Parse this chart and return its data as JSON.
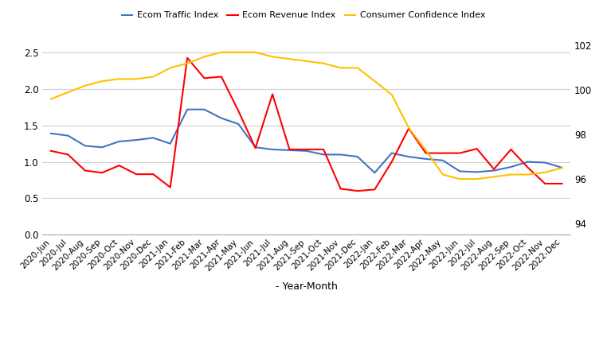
{
  "labels": [
    "2020-Jun",
    "2020-Jul",
    "2020-Aug",
    "2020-Sep",
    "2020-Oct",
    "2020-Nov",
    "2020-Dec",
    "2021-Jan",
    "2021-Feb",
    "2021-Mar",
    "2021-Apr",
    "2021-May",
    "2021-Jun",
    "2021-Jul",
    "2021-Aug",
    "2021-Sep",
    "2021-Oct",
    "2021-Nov",
    "2021-Dec",
    "2022-Jan",
    "2022-Feb",
    "2022-Mar",
    "2022-Apr",
    "2022-May",
    "2022-Jun",
    "2022-Jul",
    "2022-Aug",
    "2022-Sep",
    "2022-Oct",
    "2022-Nov",
    "2022-Dec"
  ],
  "traffic_index": [
    1.39,
    1.36,
    1.22,
    1.2,
    1.28,
    1.3,
    1.33,
    1.25,
    1.72,
    1.72,
    1.6,
    1.52,
    1.2,
    1.17,
    1.16,
    1.15,
    1.1,
    1.1,
    1.07,
    0.85,
    1.12,
    1.07,
    1.04,
    1.02,
    0.87,
    0.86,
    0.88,
    0.93,
    1.0,
    0.99,
    0.92
  ],
  "revenue_index": [
    1.15,
    1.1,
    0.88,
    0.85,
    0.95,
    0.83,
    0.83,
    0.65,
    2.43,
    2.15,
    2.17,
    1.7,
    1.19,
    1.93,
    1.17,
    1.17,
    1.17,
    0.63,
    0.6,
    0.62,
    1.0,
    1.46,
    1.12,
    1.12,
    1.12,
    1.18,
    0.9,
    1.17,
    0.92,
    0.7,
    0.7
  ],
  "consumer_confidence": [
    99.6,
    99.9,
    100.2,
    100.4,
    100.5,
    100.5,
    100.6,
    101.0,
    101.2,
    101.5,
    101.7,
    101.7,
    101.7,
    101.5,
    101.4,
    101.3,
    101.2,
    101.0,
    101.0,
    100.4,
    99.8,
    98.3,
    97.3,
    96.2,
    96.0,
    96.0,
    96.1,
    96.2,
    96.2,
    96.3,
    96.5
  ],
  "traffic_color": "#4472C4",
  "revenue_color": "#FF0000",
  "confidence_color": "#FFC000",
  "left_ylim": [
    0.0,
    2.75
  ],
  "right_ylim": [
    93.5,
    102.5
  ],
  "left_yticks": [
    0.0,
    0.5,
    1.0,
    1.5,
    2.0,
    2.5
  ],
  "right_yticks": [
    94,
    96,
    98,
    100,
    102
  ],
  "xlabel": "- Year-Month",
  "legend_labels": [
    "Ecom Traffic Index",
    "Ecom Revenue Index",
    "Consumer Confidence Index"
  ],
  "bg_color": "#ffffff",
  "grid_color": "#d0d0d0",
  "linewidth": 1.5
}
